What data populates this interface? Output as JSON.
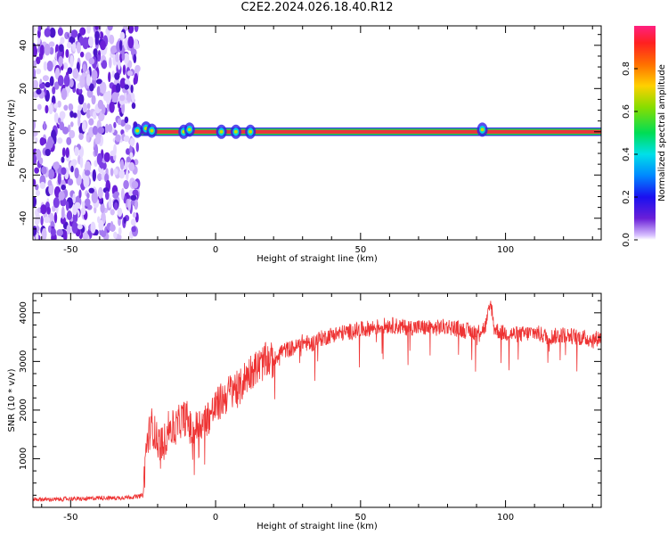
{
  "title": "C2E2.2024.026.18.40.R12",
  "colors": {
    "background": "#ffffff",
    "snr_line": "#ee3333",
    "noise": "#6a1fd8",
    "band": "#e8353b",
    "band_edge": "#22dd44"
  },
  "chart_data": [
    {
      "type": "heatmap",
      "xlabel": "Height of straight line (km)",
      "ylabel": "Frequency (Hz)",
      "xlim": [
        -63,
        133
      ],
      "ylim": [
        -50,
        49
      ],
      "xticks": [
        -50,
        0,
        50,
        100
      ],
      "xtick_labels": [
        "-50",
        "0",
        "50",
        "100"
      ],
      "yticks": [
        -40,
        -20,
        0,
        20,
        40
      ],
      "ytick_labels": [
        "-40",
        "-20",
        "0",
        "20",
        "40"
      ],
      "grid": false,
      "noise_region_x": [
        -63,
        -28
      ],
      "signal_band": {
        "x_start": -28,
        "x_end": 133,
        "center_freq": 0,
        "half_width": 1.5
      },
      "blobs": [
        {
          "x": -27,
          "y": 0.5
        },
        {
          "x": -24,
          "y": 1.5
        },
        {
          "x": -22,
          "y": 0.5
        },
        {
          "x": -11,
          "y": 0
        },
        {
          "x": -9,
          "y": 1
        },
        {
          "x": 2,
          "y": 0
        },
        {
          "x": 7,
          "y": 0
        },
        {
          "x": 12,
          "y": 0
        },
        {
          "x": 92,
          "y": 1
        }
      ],
      "colorbar": {
        "label": "Normalized spectral amplitude",
        "range": [
          0,
          1
        ],
        "ticks": [
          0.0,
          0.2,
          0.4,
          0.6,
          0.8
        ],
        "tick_labels": [
          "0.0",
          "0.2",
          "0.4",
          "0.6",
          "0.8"
        ]
      }
    },
    {
      "type": "line",
      "xlabel": "Height of straight line (km)",
      "ylabel": "SNR (10 * v/v)",
      "xlim": [
        -63,
        133
      ],
      "ylim": [
        0,
        4400
      ],
      "xticks": [
        -50,
        0,
        50,
        100
      ],
      "xtick_labels": [
        "-50",
        "0",
        "50",
        "100"
      ],
      "yticks": [
        1000,
        2000,
        3000,
        4000
      ],
      "ytick_labels": [
        "1000",
        "2000",
        "3000",
        "4000"
      ],
      "grid": false,
      "series": [
        {
          "x": [
            -63,
            -55,
            -50,
            -45,
            -40,
            -35,
            -30,
            -27,
            -25,
            -24,
            -23,
            -22,
            -20,
            -18,
            -16,
            -14,
            -12,
            -10,
            -8,
            -6,
            -4,
            -2,
            0,
            2,
            4,
            6,
            8,
            10,
            12,
            15,
            18,
            20,
            22,
            25,
            28,
            30,
            33,
            35,
            38,
            40,
            45,
            50,
            55,
            60,
            65,
            70,
            75,
            80,
            85,
            90,
            93,
            95,
            96,
            98,
            100,
            105,
            110,
            115,
            120,
            125,
            130,
            133
          ],
          "y": [
            170,
            160,
            180,
            170,
            200,
            190,
            210,
            220,
            250,
            1200,
            1500,
            1700,
            1350,
            1300,
            1650,
            1600,
            1800,
            1850,
            1500,
            1700,
            1750,
            1900,
            2050,
            2200,
            2300,
            2500,
            2400,
            2650,
            2800,
            2900,
            3050,
            3000,
            3200,
            3250,
            3300,
            3400,
            3350,
            3450,
            3500,
            3550,
            3600,
            3650,
            3700,
            3750,
            3700,
            3700,
            3680,
            3720,
            3650,
            3600,
            3700,
            4200,
            3700,
            3600,
            3580,
            3550,
            3600,
            3500,
            3550,
            3500,
            3450,
            3500
          ]
        }
      ]
    }
  ]
}
